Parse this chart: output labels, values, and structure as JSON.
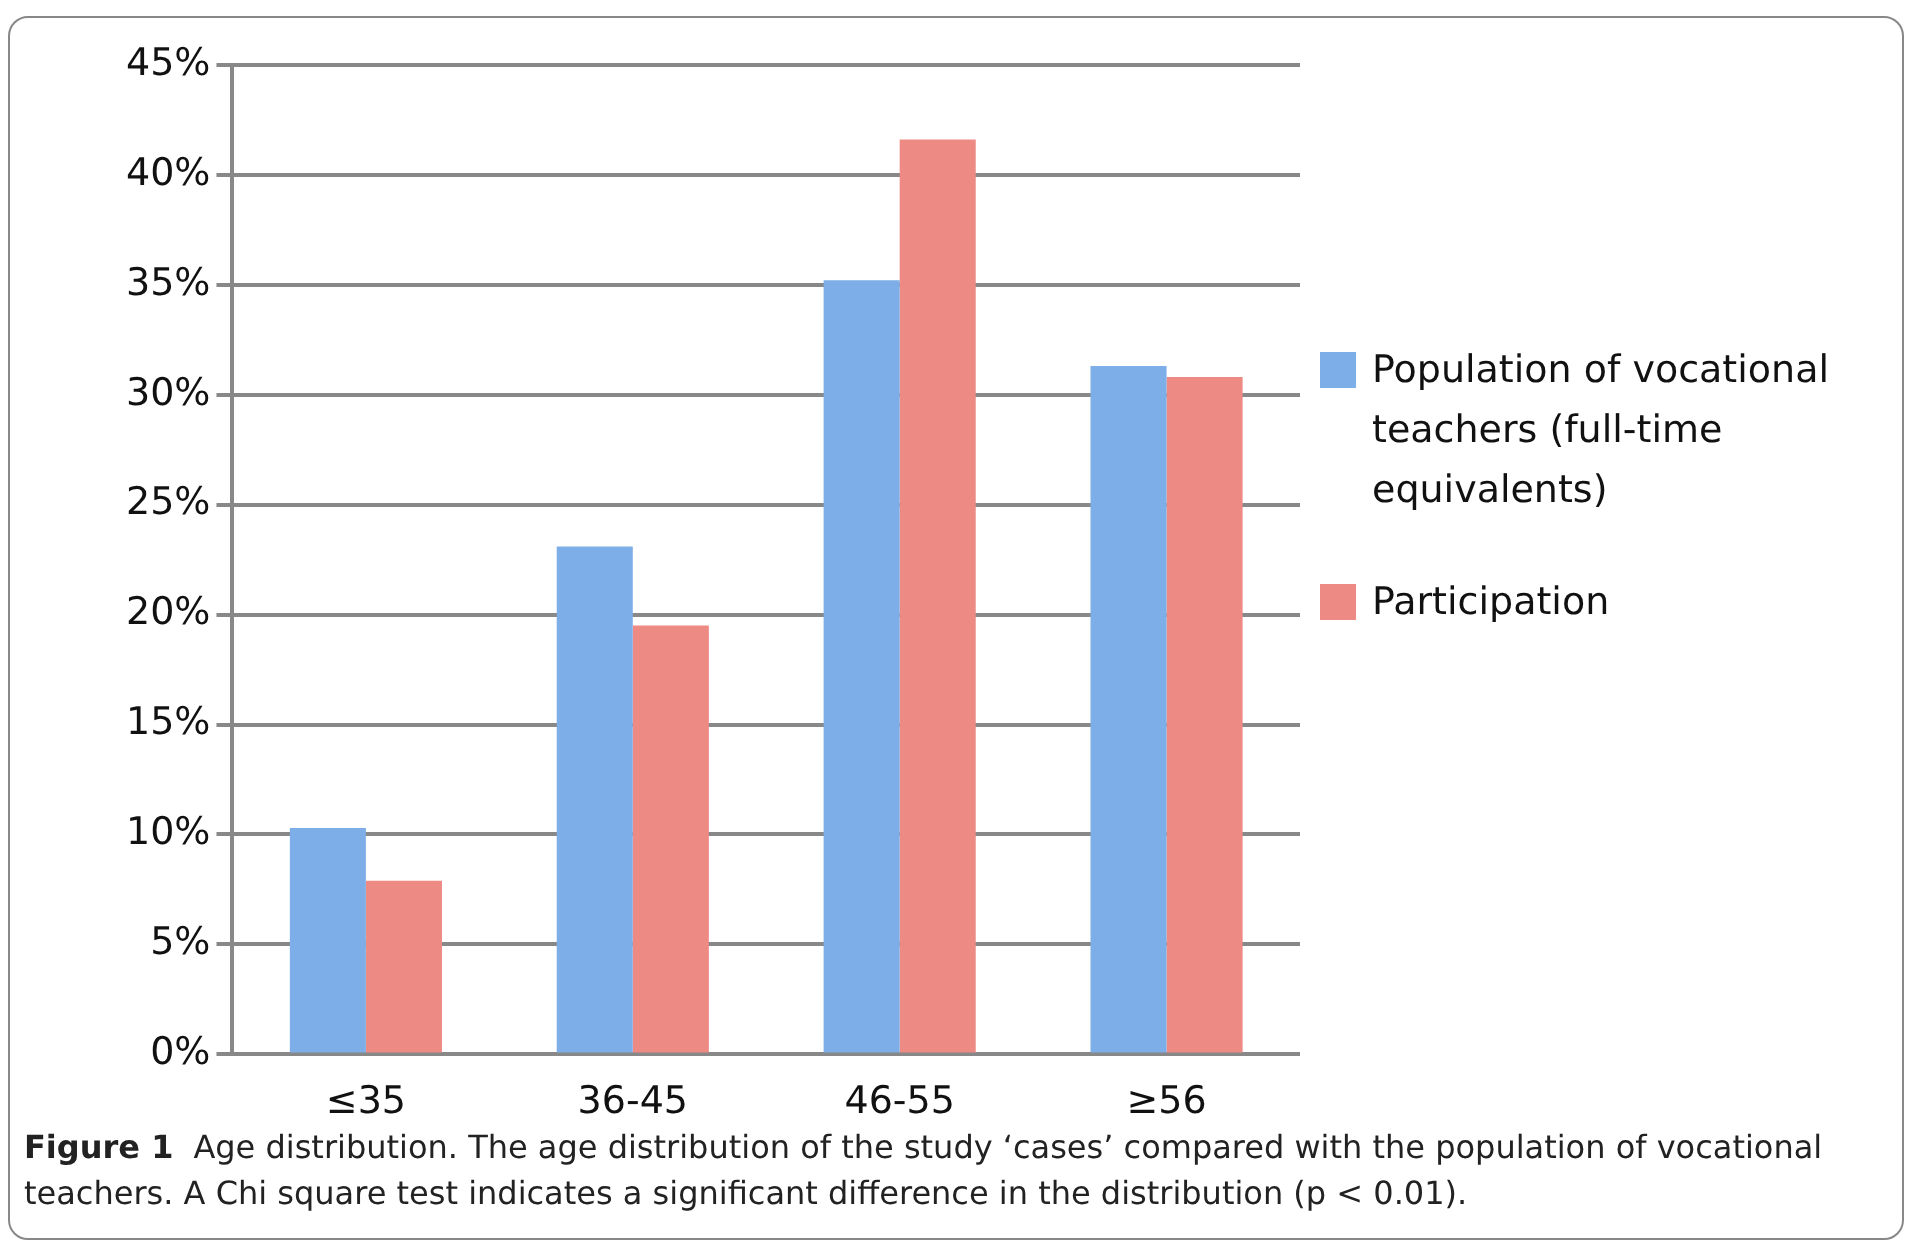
{
  "chart_data": {
    "type": "bar",
    "title": "Figure 1",
    "annotations": [
      "Age distribution. The age distribution of the study ‘cases’ compared with the population of vocational teachers. A Chi square test indicates a significant difference in the distribution (p < 0.01)."
    ],
    "categories": [
      "≤35",
      "36-45",
      "46-55",
      "≥56"
    ],
    "series": [
      {
        "name": "Population of vocational teachers (full-time equivalents)",
        "color": "#7eaee8",
        "values": [
          10.3,
          23.1,
          35.2,
          31.3
        ]
      },
      {
        "name": "Participation",
        "color": "#ee8a84",
        "values": [
          7.9,
          19.5,
          41.6,
          30.8
        ]
      }
    ],
    "ylim": [
      0,
      45
    ],
    "yticks": [
      {
        "value": 0,
        "label": "0%"
      },
      {
        "value": 5,
        "label": "5%"
      },
      {
        "value": 10,
        "label": "10%"
      },
      {
        "value": 15,
        "label": "15%"
      },
      {
        "value": 20,
        "label": "20%"
      },
      {
        "value": 25,
        "label": "25%"
      },
      {
        "value": 30,
        "label": "30%"
      },
      {
        "value": 35,
        "label": "35%"
      },
      {
        "value": 40,
        "label": "40%"
      },
      {
        "value": 45,
        "label": "45%"
      }
    ],
    "grid": "y",
    "legend": "right"
  }
}
